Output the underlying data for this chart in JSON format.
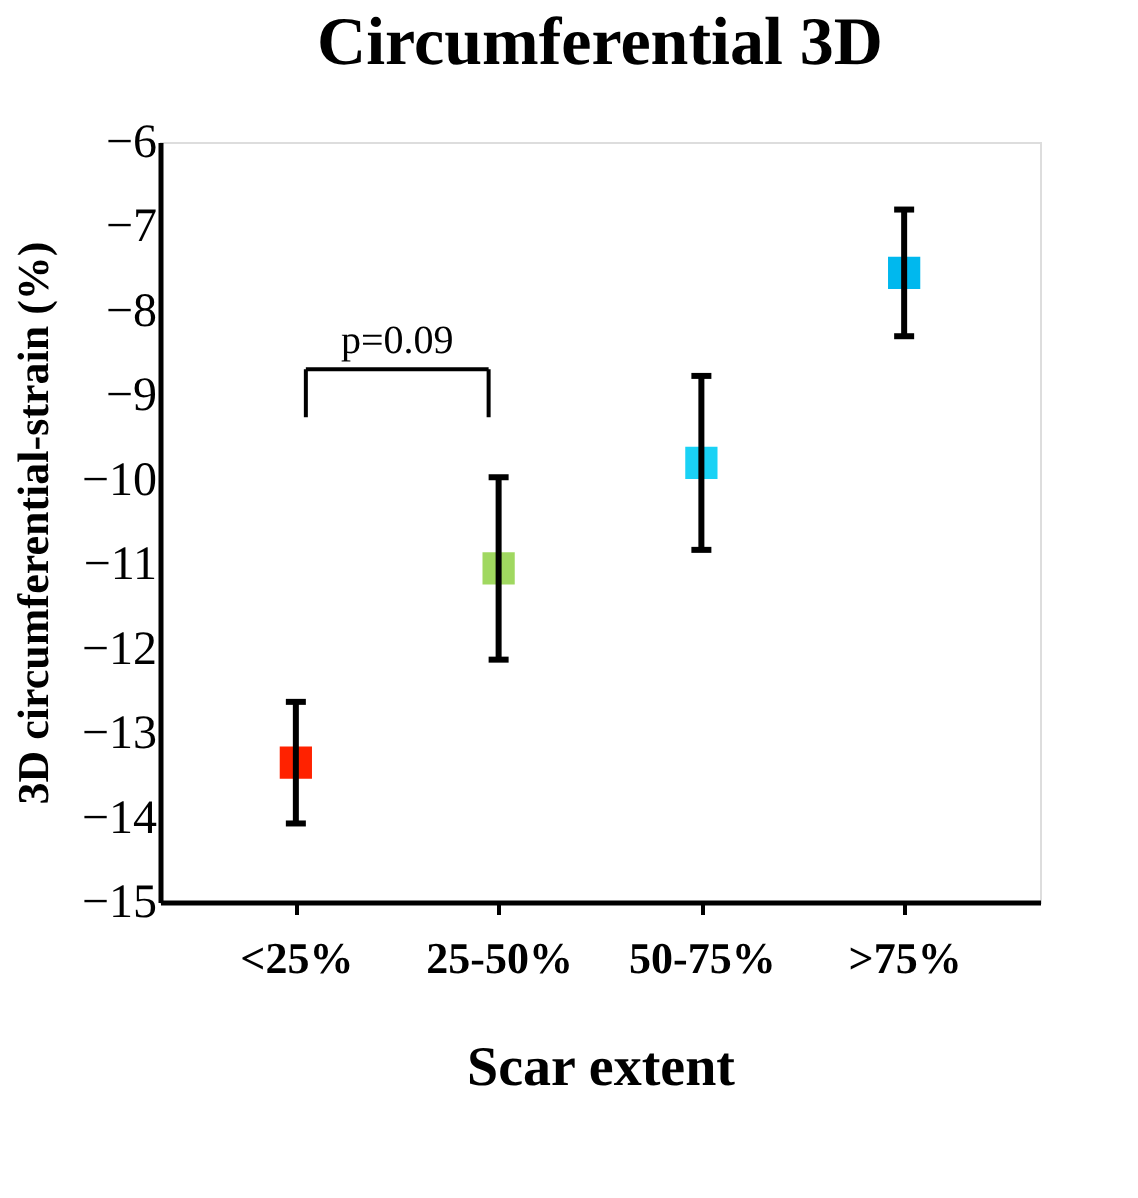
{
  "chart_data": {
    "type": "scatter",
    "title": "Circumferential 3D",
    "xlabel": "Scar extent",
    "ylabel": "3D circumferential-strain (%)",
    "categories": [
      "<25%",
      "25-50%",
      "50-75%",
      ">75%"
    ],
    "values": [
      -13.35,
      -11.05,
      -9.8,
      -7.55
    ],
    "errors": [
      0.72,
      1.08,
      1.03,
      0.75
    ],
    "colors": [
      "#ff2200",
      "#a0d860",
      "#1ad2f5",
      "#00b8ee"
    ],
    "marker": "square",
    "ylim": [
      -15,
      -6
    ],
    "yticks": [
      -6,
      -7,
      -8,
      -9,
      -10,
      -11,
      -12,
      -13,
      -14,
      -15
    ],
    "annotations": [
      "p=0.09"
    ],
    "grid": false,
    "legend": false
  }
}
